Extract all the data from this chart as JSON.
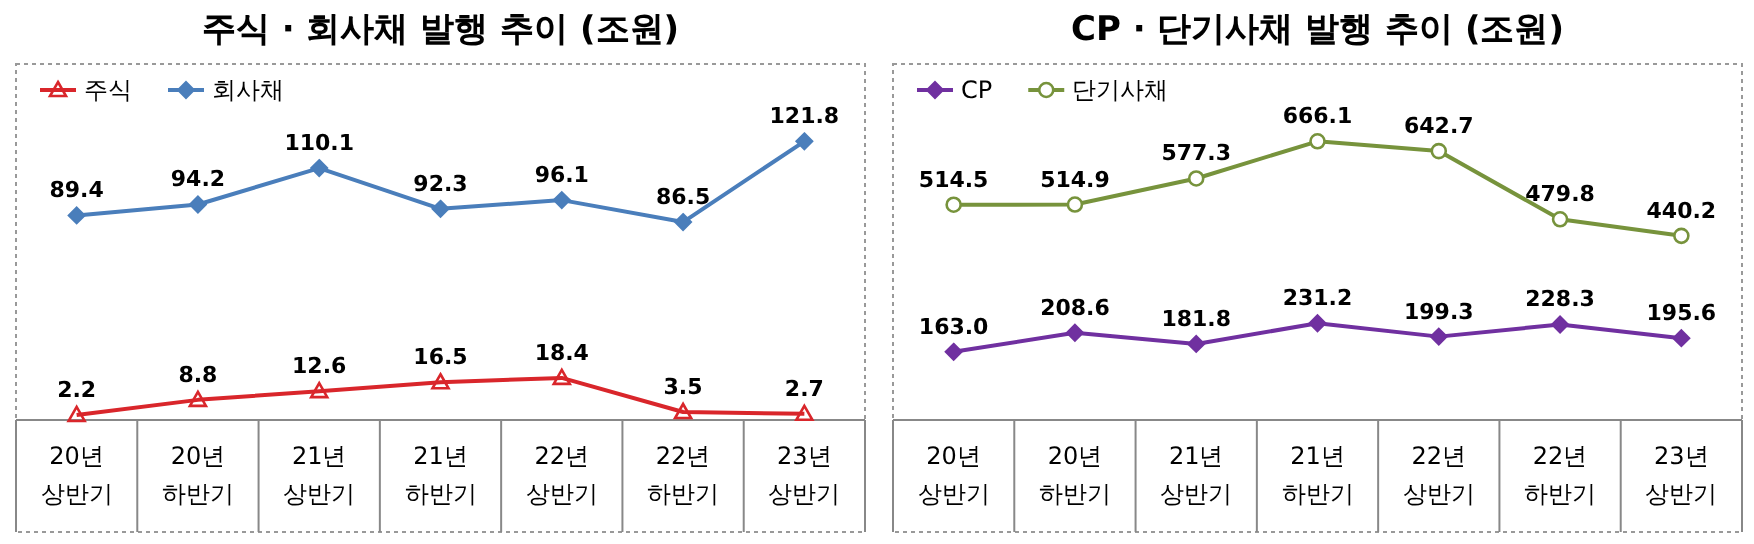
{
  "chart_data": [
    {
      "type": "line",
      "title": "주식 · 회사채 발행 추이 (조원)",
      "categories": [
        "20년 상반기",
        "20년 하반기",
        "21년 상반기",
        "21년 하반기",
        "22년 상반기",
        "22년 하반기",
        "23년 상반기"
      ],
      "legend": "top left",
      "series": [
        {
          "name": "주식",
          "color": "#d9262b",
          "marker": "triangle",
          "values": [
            2.2,
            8.8,
            12.6,
            16.5,
            18.4,
            3.5,
            2.7
          ],
          "value_labels": [
            "2.2",
            "8.8",
            "12.6",
            "16.5",
            "18.4",
            "3.5",
            "2.7"
          ]
        },
        {
          "name": "회사채",
          "color": "#4a7ebb",
          "marker": "diamond",
          "values": [
            89.4,
            94.2,
            110.1,
            92.3,
            96.1,
            86.5,
            121.8
          ],
          "value_labels": [
            "89.4",
            "94.2",
            "110.1",
            "92.3",
            "96.1",
            "86.5",
            "121.8"
          ]
        }
      ]
    },
    {
      "type": "line",
      "title": "CP · 단기사채 발행 추이 (조원)",
      "categories": [
        "20년 상반기",
        "20년 하반기",
        "21년 상반기",
        "21년 하반기",
        "22년 상반기",
        "22년 하반기",
        "23년 상반기"
      ],
      "legend": "top left",
      "series": [
        {
          "name": "CP",
          "color": "#7030a0",
          "marker": "diamond",
          "values": [
            163.0,
            208.6,
            181.8,
            231.2,
            199.3,
            228.3,
            195.6
          ],
          "value_labels": [
            "163.0",
            "208.6",
            "181.8",
            "231.2",
            "199.3",
            "228.3",
            "195.6"
          ]
        },
        {
          "name": "단기사채",
          "color": "#77933c",
          "marker": "circle",
          "values": [
            514.5,
            514.9,
            577.3,
            666.1,
            642.7,
            479.8,
            440.2
          ],
          "value_labels": [
            "514.5",
            "514.9",
            "577.3",
            "666.1",
            "642.7",
            "479.8",
            "440.2"
          ]
        }
      ]
    }
  ]
}
